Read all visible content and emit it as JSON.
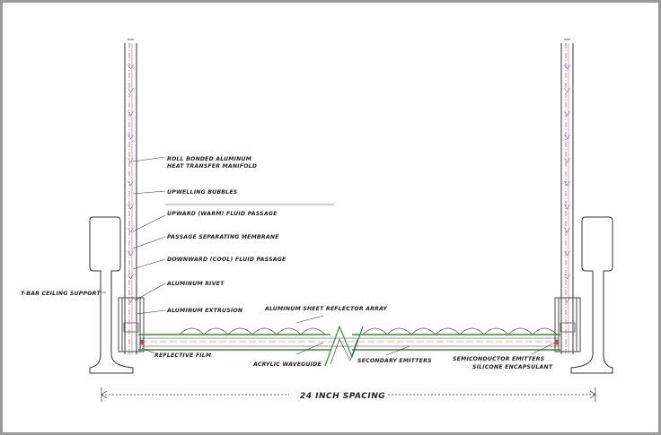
{
  "labels": {
    "roll_bonded_1": "ROLL BONDED ALUMINUM",
    "roll_bonded_2": "HEAT TRANSFER MANIFOLD",
    "upwelling": "UPWELLING BUBBLES",
    "upward": "UPWARD (WARM) FLUID PASSAGE",
    "membrane": "PASSAGE SEPARATING MEMBRANE",
    "downward": "DOWNWARD (COOL) FLUID PASSAGE",
    "rivet": "ALUMINUM RIVET",
    "extrusion": "ALUMINUM EXTRUSION",
    "reflector": "ALUMINUM SHEET REFLECTOR ARRAY",
    "tbar": "T-BAR CEILING SUPPORT",
    "film": "REFLECTIVE FILM",
    "waveguide": "ACRYLIC WAVEGUIDE",
    "secondary": "SECONDARY EMITTERS",
    "semiconductor": "SEMICONDUCTOR EMITTERS",
    "silicone": "SILICONE ENCAPSULANT",
    "spacing": "24 INCH SPACING"
  },
  "colors": {
    "frame": "#9a9a9a",
    "line": "#333333",
    "fluid_red": "#e05050",
    "membrane_blue": "#8080c0",
    "reflector_green": "#3a8a3a"
  }
}
